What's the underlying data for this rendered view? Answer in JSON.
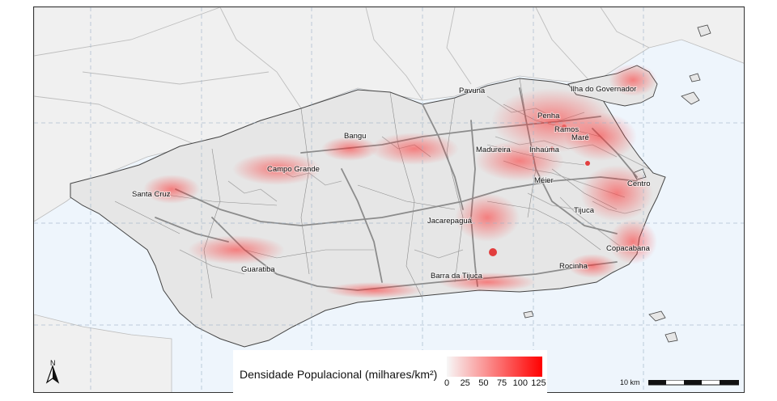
{
  "map": {
    "land_color": "#e6e6e6",
    "water_color": "#eef5fc",
    "outside_color": "#f0f0f0",
    "road_color": "#8c8c8c",
    "boundary_color": "#444444",
    "neighborhoods": [
      {
        "label": "Ilha do Governador"
      },
      {
        "label": "Pavuna"
      },
      {
        "label": "Penha"
      },
      {
        "label": "Ramos"
      },
      {
        "label": "Maré"
      },
      {
        "label": "Bangu"
      },
      {
        "label": "Madureira"
      },
      {
        "label": "Inhaúma"
      },
      {
        "label": "Campo Grande"
      },
      {
        "label": "Méier"
      },
      {
        "label": "Centro"
      },
      {
        "label": "Santa Cruz"
      },
      {
        "label": "Tijuca"
      },
      {
        "label": "Jacarepaguá"
      },
      {
        "label": "Copacabana"
      },
      {
        "label": "Guaratiba"
      },
      {
        "label": "Rocinha"
      },
      {
        "label": "Barra da Tijuca"
      }
    ]
  },
  "legend": {
    "title": "Densidade Populacional (milhares/km²)",
    "ticks": [
      "0",
      "25",
      "50",
      "75",
      "100",
      "125"
    ],
    "min": 0,
    "max": 130,
    "color_low": "#f7f7f7",
    "color_high": "#ff0000"
  },
  "north_arrow": {
    "label": "N"
  },
  "scale_bar": {
    "label": "10 km"
  }
}
